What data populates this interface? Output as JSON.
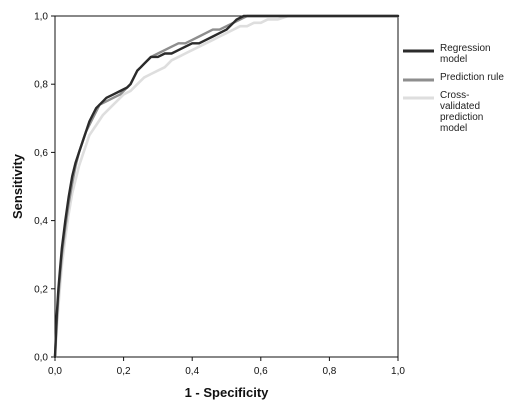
{
  "chart_data": {
    "type": "line",
    "title": "",
    "xlabel": "1 - Specificity",
    "ylabel": "Sensitivity",
    "xlim": [
      0,
      1
    ],
    "ylim": [
      0,
      1
    ],
    "xticks": [
      "0,0",
      "0,2",
      "0,4",
      "0,6",
      "0,8",
      "1,0"
    ],
    "yticks": [
      "0,0",
      "0,2",
      "0,4",
      "0,6",
      "0,8",
      "1,0"
    ],
    "grid": false,
    "legend_position": "right",
    "series": [
      {
        "name": "Regression model",
        "color": "#2b2b2b",
        "x": [
          0,
          0.005,
          0.01,
          0.015,
          0.02,
          0.03,
          0.04,
          0.05,
          0.06,
          0.07,
          0.08,
          0.09,
          0.1,
          0.11,
          0.12,
          0.13,
          0.15,
          0.17,
          0.19,
          0.21,
          0.22,
          0.23,
          0.24,
          0.25,
          0.26,
          0.28,
          0.3,
          0.32,
          0.34,
          0.36,
          0.38,
          0.4,
          0.42,
          0.44,
          0.46,
          0.48,
          0.5,
          0.52,
          0.53,
          0.55,
          0.58,
          0.62,
          0.65,
          0.7,
          0.8,
          0.9,
          1.0
        ],
        "y": [
          0,
          0.12,
          0.2,
          0.26,
          0.32,
          0.4,
          0.47,
          0.53,
          0.57,
          0.6,
          0.63,
          0.66,
          0.69,
          0.71,
          0.73,
          0.74,
          0.76,
          0.77,
          0.78,
          0.79,
          0.8,
          0.82,
          0.84,
          0.85,
          0.86,
          0.88,
          0.88,
          0.89,
          0.89,
          0.9,
          0.91,
          0.92,
          0.92,
          0.93,
          0.94,
          0.95,
          0.96,
          0.98,
          0.99,
          1.0,
          1.0,
          1.0,
          1.0,
          1.0,
          1.0,
          1.0,
          1.0
        ]
      },
      {
        "name": "Prediction rule",
        "color": "#8e8e8e",
        "x": [
          0,
          0.005,
          0.01,
          0.015,
          0.02,
          0.03,
          0.04,
          0.05,
          0.06,
          0.07,
          0.08,
          0.09,
          0.1,
          0.11,
          0.12,
          0.13,
          0.15,
          0.17,
          0.19,
          0.21,
          0.22,
          0.23,
          0.24,
          0.25,
          0.26,
          0.28,
          0.3,
          0.32,
          0.34,
          0.36,
          0.38,
          0.4,
          0.42,
          0.44,
          0.46,
          0.48,
          0.5,
          0.52,
          0.54,
          0.56,
          0.6,
          0.65,
          0.7,
          0.8,
          0.9,
          1.0
        ],
        "y": [
          0,
          0.1,
          0.18,
          0.24,
          0.3,
          0.38,
          0.45,
          0.51,
          0.56,
          0.6,
          0.63,
          0.66,
          0.68,
          0.7,
          0.72,
          0.74,
          0.75,
          0.76,
          0.77,
          0.79,
          0.8,
          0.82,
          0.84,
          0.85,
          0.86,
          0.88,
          0.89,
          0.9,
          0.91,
          0.92,
          0.92,
          0.93,
          0.94,
          0.95,
          0.96,
          0.96,
          0.97,
          0.98,
          0.99,
          1.0,
          1.0,
          1.0,
          1.0,
          1.0,
          1.0,
          1.0
        ]
      },
      {
        "name": "Cross-validated prediction model",
        "color": "#dedede",
        "x": [
          0,
          0.005,
          0.01,
          0.015,
          0.02,
          0.03,
          0.04,
          0.05,
          0.06,
          0.07,
          0.08,
          0.09,
          0.1,
          0.12,
          0.14,
          0.16,
          0.18,
          0.2,
          0.22,
          0.24,
          0.26,
          0.28,
          0.3,
          0.32,
          0.34,
          0.36,
          0.38,
          0.4,
          0.42,
          0.44,
          0.46,
          0.48,
          0.5,
          0.52,
          0.54,
          0.56,
          0.58,
          0.6,
          0.62,
          0.65,
          0.68,
          0.7,
          0.8,
          0.9,
          1.0
        ],
        "y": [
          0,
          0.08,
          0.15,
          0.21,
          0.27,
          0.35,
          0.42,
          0.48,
          0.52,
          0.56,
          0.59,
          0.62,
          0.65,
          0.68,
          0.71,
          0.73,
          0.75,
          0.77,
          0.78,
          0.8,
          0.82,
          0.83,
          0.84,
          0.85,
          0.87,
          0.88,
          0.89,
          0.9,
          0.91,
          0.92,
          0.93,
          0.94,
          0.95,
          0.96,
          0.97,
          0.97,
          0.98,
          0.98,
          0.99,
          0.99,
          1.0,
          1.0,
          1.0,
          1.0,
          1.0
        ]
      }
    ]
  }
}
